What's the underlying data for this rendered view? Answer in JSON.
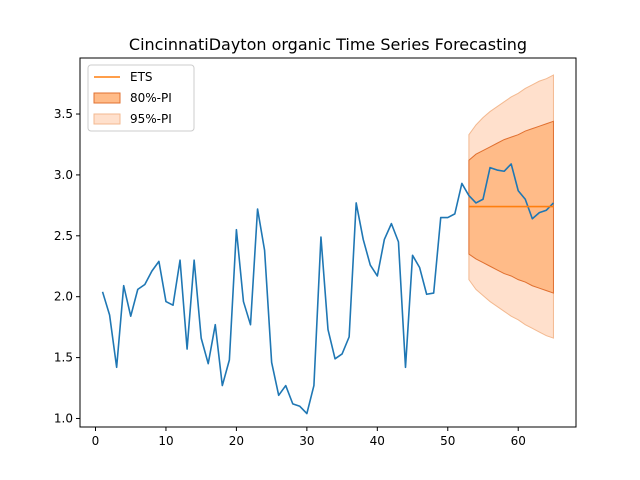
{
  "chart_data": {
    "type": "line",
    "title": "CincinnatiDayton organic Time Series Forecasting",
    "xlabel": "",
    "ylabel": "",
    "xlim": [
      -2.2,
      68.2
    ],
    "ylim": [
      0.93,
      3.96
    ],
    "x_ticks": [
      0,
      10,
      20,
      30,
      40,
      50,
      60
    ],
    "y_ticks": [
      1.0,
      1.5,
      2.0,
      2.5,
      3.0,
      3.5
    ],
    "grid": false,
    "legend_position": "top-left",
    "colors": {
      "series": "#1f77b4",
      "forecast": "#ff7f0e",
      "pi80_fill": "#ffbb88",
      "pi80_edge": "#e07030",
      "pi95_fill": "#ffe0cc",
      "pi95_edge": "#f3b990"
    },
    "legend": [
      {
        "label": "ETS",
        "kind": "line"
      },
      {
        "label": "80%-PI",
        "kind": "band80"
      },
      {
        "label": "95%-PI",
        "kind": "band95"
      }
    ],
    "series": {
      "x": [
        1,
        2,
        3,
        4,
        5,
        6,
        7,
        8,
        9,
        10,
        11,
        12,
        13,
        14,
        15,
        16,
        17,
        18,
        19,
        20,
        21,
        22,
        23,
        24,
        25,
        26,
        27,
        28,
        29,
        30,
        31,
        32,
        33,
        34,
        35,
        36,
        37,
        38,
        39,
        40,
        41,
        42,
        43,
        44,
        45,
        46,
        47,
        48,
        49,
        50,
        51,
        52,
        53,
        54,
        55,
        56,
        57,
        58,
        59,
        60,
        61,
        62,
        63,
        64,
        65
      ],
      "y": [
        2.04,
        1.85,
        1.42,
        2.09,
        1.84,
        2.06,
        2.1,
        2.21,
        2.29,
        1.96,
        1.93,
        2.3,
        1.57,
        2.3,
        1.66,
        1.45,
        1.77,
        1.27,
        1.48,
        2.55,
        1.96,
        1.77,
        2.72,
        2.38,
        1.46,
        1.19,
        1.27,
        1.12,
        1.1,
        1.04,
        1.27,
        2.49,
        1.73,
        1.49,
        1.53,
        1.67,
        2.77,
        2.47,
        2.26,
        2.17,
        2.47,
        2.6,
        2.45,
        1.42,
        2.34,
        2.24,
        2.02,
        2.03,
        2.65,
        2.65,
        2.68,
        2.93,
        2.83,
        2.77,
        2.8,
        3.06,
        3.04,
        3.03,
        3.09,
        2.87,
        2.8,
        2.64,
        2.69,
        2.71,
        2.77
      ]
    },
    "forecast": {
      "x": [
        53,
        65
      ],
      "y": [
        2.74,
        2.74
      ]
    },
    "pi80": {
      "x": [
        53,
        54,
        55,
        56,
        57,
        58,
        59,
        60,
        61,
        62,
        63,
        64,
        65
      ],
      "lower": [
        2.35,
        2.31,
        2.28,
        2.25,
        2.22,
        2.19,
        2.17,
        2.14,
        2.12,
        2.09,
        2.07,
        2.05,
        2.03
      ],
      "upper": [
        3.12,
        3.17,
        3.2,
        3.23,
        3.26,
        3.29,
        3.31,
        3.33,
        3.36,
        3.38,
        3.4,
        3.42,
        3.44
      ]
    },
    "pi95": {
      "x": [
        53,
        54,
        55,
        56,
        57,
        58,
        59,
        60,
        61,
        62,
        63,
        64,
        65
      ],
      "lower": [
        2.14,
        2.06,
        2.01,
        1.96,
        1.92,
        1.88,
        1.84,
        1.81,
        1.77,
        1.74,
        1.71,
        1.68,
        1.66
      ],
      "upper": [
        3.33,
        3.41,
        3.47,
        3.52,
        3.56,
        3.6,
        3.64,
        3.67,
        3.71,
        3.74,
        3.77,
        3.79,
        3.82
      ]
    }
  }
}
